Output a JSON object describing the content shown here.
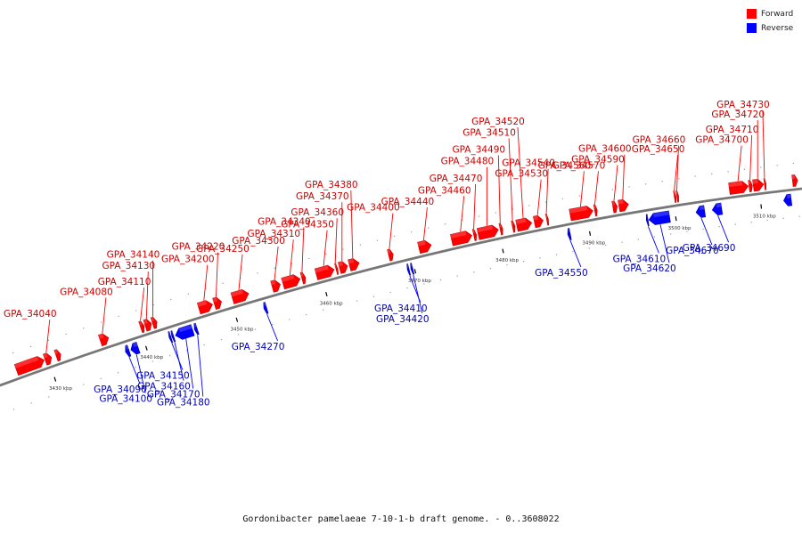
{
  "legend": {
    "items": [
      {
        "label": "Forward",
        "color": "#ff0000"
      },
      {
        "label": "Reverse",
        "color": "#0000ff"
      }
    ]
  },
  "caption": "Gordonibacter pamelaeae 7-10-1-b draft genome. - 0..3608022",
  "colors": {
    "forward": "#ff0000",
    "reverse": "#0000ff",
    "backbone": "#777777"
  },
  "axis_ticks": [
    {
      "label": "3430 kbp",
      "pos": 3430
    },
    {
      "label": "3440 kbp",
      "pos": 3440
    },
    {
      "label": "3450 kbp",
      "pos": 3450
    },
    {
      "label": "3460 kbp",
      "pos": 3460
    },
    {
      "label": "3470 kbp",
      "pos": 3470
    },
    {
      "label": "3480 kbp",
      "pos": 3480
    },
    {
      "label": "3490 kbp",
      "pos": 3490
    },
    {
      "label": "3500 kbp",
      "pos": 3500
    },
    {
      "label": "3510 kbp",
      "pos": 3510
    }
  ],
  "genes": [
    {
      "name": "",
      "strand": "forward",
      "start": 3426.6,
      "end": 3429.6
    },
    {
      "name": "GPA_34040",
      "strand": "forward",
      "start": 3429.7,
      "end": 3430.4
    },
    {
      "name": "",
      "strand": "forward",
      "start": 3430.9,
      "end": 3431.4
    },
    {
      "name": "GPA_34080",
      "strand": "forward",
      "start": 3435.7,
      "end": 3436.6
    },
    {
      "name": "GPA_34090",
      "strand": "reverse",
      "start": 3437.8,
      "end": 3438.2
    },
    {
      "name": "GPA_34100",
      "strand": "reverse",
      "start": 3438.4,
      "end": 3439.2
    },
    {
      "name": "GPA_34110",
      "strand": "forward",
      "start": 3440.1,
      "end": 3440.5
    },
    {
      "name": "GPA_34130",
      "strand": "forward",
      "start": 3440.6,
      "end": 3441.3
    },
    {
      "name": "GPA_34140",
      "strand": "forward",
      "start": 3441.4,
      "end": 3441.9
    },
    {
      "name": "GPA_34150",
      "strand": "reverse",
      "start": 3442.6,
      "end": 3442.8
    },
    {
      "name": "GPA_34160",
      "strand": "reverse",
      "start": 3442.9,
      "end": 3443.1
    },
    {
      "name": "GPA_34170",
      "strand": "reverse",
      "start": 3443.3,
      "end": 3445.2
    },
    {
      "name": "GPA_34180",
      "strand": "reverse",
      "start": 3445.4,
      "end": 3445.7
    },
    {
      "name": "GPA_34200",
      "strand": "forward",
      "start": 3446.5,
      "end": 3448.0
    },
    {
      "name": "GPA_34220",
      "strand": "forward",
      "start": 3448.2,
      "end": 3449.0
    },
    {
      "name": "GPA_34250",
      "strand": "forward",
      "start": 3450.2,
      "end": 3452.0
    },
    {
      "name": "GPA_34270",
      "strand": "reverse",
      "start": 3453.1,
      "end": 3453.4
    },
    {
      "name": "GPA_34300",
      "strand": "forward",
      "start": 3454.6,
      "end": 3455.5
    },
    {
      "name": "GPA_34310",
      "strand": "forward",
      "start": 3455.8,
      "end": 3457.7
    },
    {
      "name": "GPA_34340",
      "strand": "forward",
      "start": 3457.9,
      "end": 3458.3
    },
    {
      "name": "GPA_34350",
      "strand": "forward",
      "start": 3459.5,
      "end": 3461.5
    },
    {
      "name": "GPA_34360",
      "strand": "forward",
      "start": 3461.7,
      "end": 3461.9
    },
    {
      "name": "GPA_34370",
      "strand": "forward",
      "start": 3462.1,
      "end": 3463.0
    },
    {
      "name": "GPA_34380",
      "strand": "forward",
      "start": 3463.2,
      "end": 3464.3
    },
    {
      "name": "GPA_34400",
      "strand": "forward",
      "start": 3467.6,
      "end": 3468.1
    },
    {
      "name": "GPA_34410",
      "strand": "reverse",
      "start": 3469.2,
      "end": 3469.4
    },
    {
      "name": "GPA_34420",
      "strand": "reverse",
      "start": 3469.6,
      "end": 3469.8
    },
    {
      "name": "GPA_34440",
      "strand": "forward",
      "start": 3471.0,
      "end": 3472.4
    },
    {
      "name": "GPA_34460",
      "strand": "forward",
      "start": 3474.7,
      "end": 3477.0
    },
    {
      "name": "GPA_34470",
      "strand": "forward",
      "start": 3477.2,
      "end": 3477.5
    },
    {
      "name": "GPA_34480",
      "strand": "forward",
      "start": 3477.7,
      "end": 3480.0
    },
    {
      "name": "GPA_34490",
      "strand": "forward",
      "start": 3480.2,
      "end": 3480.5
    },
    {
      "name": "GPA_34510",
      "strand": "forward",
      "start": 3481.6,
      "end": 3481.9
    },
    {
      "name": "GPA_34520",
      "strand": "forward",
      "start": 3482.1,
      "end": 3483.8
    },
    {
      "name": "GPA_34530",
      "strand": "forward",
      "start": 3484.1,
      "end": 3485.1
    },
    {
      "name": "GPA_34540",
      "strand": "forward",
      "start": 3485.5,
      "end": 3485.7
    },
    {
      "name": "GPA_34550",
      "strand": "reverse",
      "start": 3487.5,
      "end": 3487.8
    },
    {
      "name": "GPA_34560",
      "strand": "forward",
      "start": 3488.2,
      "end": 3490.8
    },
    {
      "name": "GPA_34570",
      "strand": "forward",
      "start": 3491.0,
      "end": 3491.3
    },
    {
      "name": "GPA_34590",
      "strand": "forward",
      "start": 3493.1,
      "end": 3493.6
    },
    {
      "name": "GPA_34600",
      "strand": "forward",
      "start": 3493.8,
      "end": 3494.9
    },
    {
      "name": "GPA_34610",
      "strand": "reverse",
      "start": 3496.6,
      "end": 3496.8
    },
    {
      "name": "GPA_34620",
      "strand": "reverse",
      "start": 3496.9,
      "end": 3499.3
    },
    {
      "name": "GPA_34650",
      "strand": "forward",
      "start": 3500.2,
      "end": 3500.4
    },
    {
      "name": "GPA_34660",
      "strand": "forward",
      "start": 3500.5,
      "end": 3500.7
    },
    {
      "name": "GPA_34670",
      "strand": "reverse",
      "start": 3502.4,
      "end": 3503.4
    },
    {
      "name": "GPA_34690",
      "strand": "reverse",
      "start": 3504.3,
      "end": 3505.4
    },
    {
      "name": "GPA_34700",
      "strand": "forward",
      "start": 3506.6,
      "end": 3508.8
    },
    {
      "name": "GPA_34710",
      "strand": "forward",
      "start": 3508.9,
      "end": 3509.3
    },
    {
      "name": "GPA_34720",
      "strand": "forward",
      "start": 3509.4,
      "end": 3510.6
    },
    {
      "name": "GPA_34730",
      "strand": "forward",
      "start": 3510.7,
      "end": 3510.9
    },
    {
      "name": "",
      "strand": "reverse",
      "start": 3512.7,
      "end": 3513.6
    },
    {
      "name": "",
      "strand": "forward",
      "start": 3514.0,
      "end": 3514.6
    }
  ]
}
